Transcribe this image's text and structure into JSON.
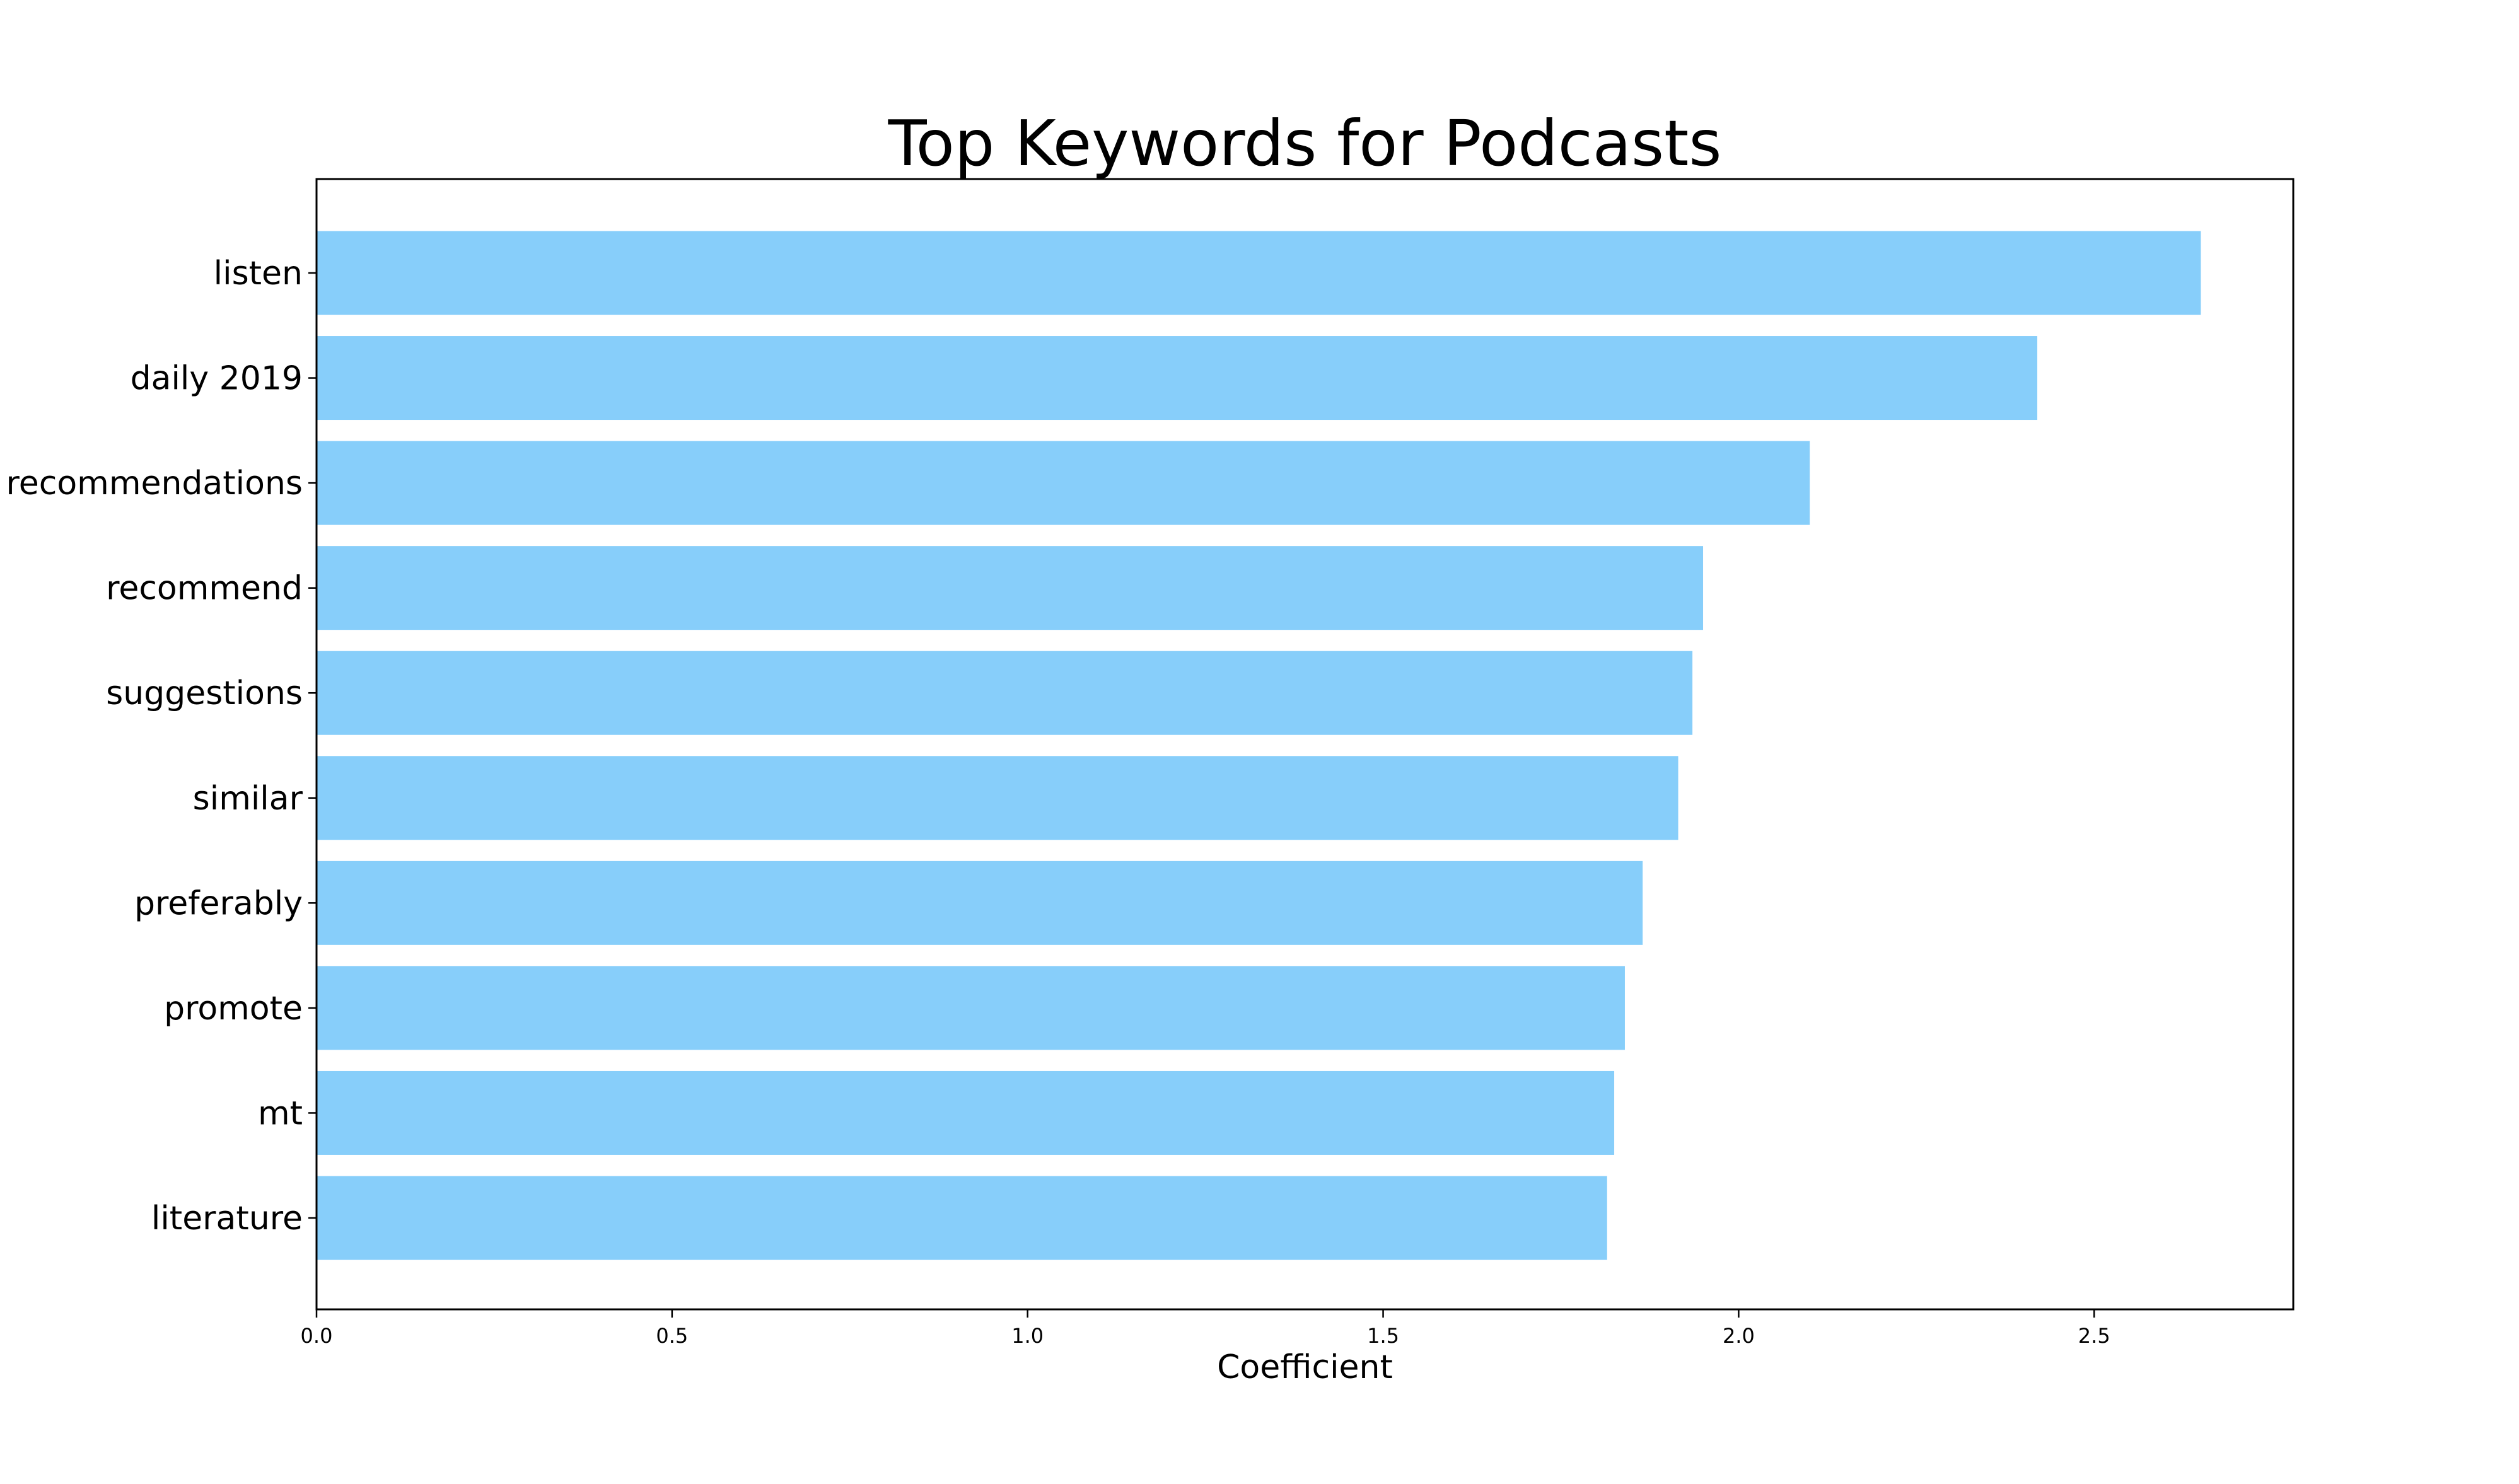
{
  "chart_data": {
    "type": "bar",
    "orientation": "horizontal",
    "title": "Top Keywords for Podcasts",
    "xlabel": "Coefficient",
    "ylabel": "",
    "categories": [
      "listen",
      "daily 2019",
      "recommendations",
      "recommend",
      "suggestions",
      "similar",
      "preferably",
      "promote",
      "mt",
      "literature"
    ],
    "values": [
      2.65,
      2.42,
      2.1,
      1.95,
      1.935,
      1.915,
      1.865,
      1.84,
      1.825,
      1.815
    ],
    "xlim": [
      0,
      2.78
    ],
    "xticks": [
      0.0,
      0.5,
      1.0,
      1.5,
      2.0,
      2.5
    ],
    "xtick_labels": [
      "0.0",
      "0.5",
      "1.0",
      "1.5",
      "2.0",
      "2.5"
    ],
    "bar_color": "#87CEFA",
    "grid": false,
    "legend": "none"
  }
}
